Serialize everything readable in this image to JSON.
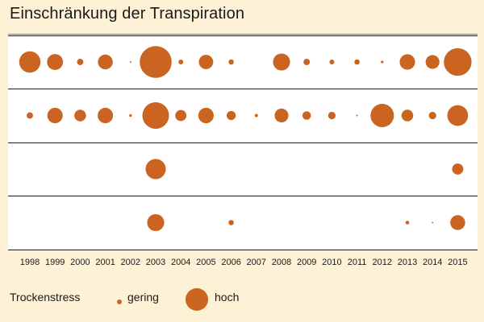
{
  "chart_data": {
    "type": "scatter",
    "title": "Einschränkung der Transpiration",
    "years": [
      "1998",
      "1999",
      "2000",
      "2001",
      "2002",
      "2003",
      "2004",
      "2005",
      "2006",
      "2007",
      "2008",
      "2009",
      "2010",
      "2011",
      "2012",
      "2013",
      "2014",
      "2015"
    ],
    "rows": [
      {
        "values": [
          2.0,
          1.5,
          0.6,
          1.4,
          0.15,
          3.0,
          0.45,
          1.35,
          0.5,
          0.0,
          1.6,
          0.6,
          0.45,
          0.5,
          0.25,
          1.45,
          1.3,
          2.6
        ]
      },
      {
        "values": [
          0.6,
          1.45,
          1.1,
          1.45,
          0.25,
          2.5,
          1.05,
          1.45,
          0.85,
          0.3,
          1.3,
          0.8,
          0.7,
          0.15,
          2.2,
          1.1,
          0.7,
          1.95
        ]
      },
      {
        "values": [
          0,
          0,
          0,
          0,
          0,
          1.9,
          0,
          0,
          0,
          0,
          0,
          0,
          0,
          0,
          0,
          0,
          0,
          1.05
        ]
      },
      {
        "values": [
          0,
          0,
          0,
          0,
          0,
          1.6,
          0,
          0,
          0.5,
          0,
          0,
          0,
          0,
          0,
          0,
          0.35,
          0.15,
          1.4
        ]
      }
    ],
    "legend": {
      "title": "Trockenstress",
      "low": "gering",
      "high": "hoch"
    },
    "colors": {
      "dot": "#cb6420",
      "panel": "#ffffff",
      "background": "#fdf2d6",
      "line": "#1a1a1a"
    }
  }
}
